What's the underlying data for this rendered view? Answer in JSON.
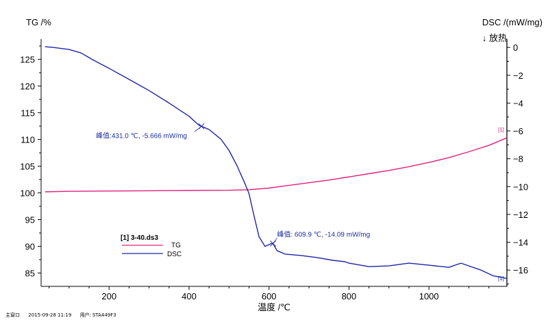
{
  "colors": {
    "tg": "#e0207a",
    "dsc": "#1c23a8",
    "axis": "#000000",
    "annotation": "#1c2ea0"
  },
  "chart_data": {
    "type": "line",
    "title": "",
    "xlabel": "温度 /℃",
    "ylabel_left": "TG /%",
    "ylabel_right": "DSC /(mW/mg)",
    "right_direction_note": "↓ 放热",
    "xlim": [
      30,
      1195
    ],
    "ylim_left": [
      82.5,
      128.8
    ],
    "ylim_right": [
      -17.17,
      0.6
    ],
    "x_ticks": [
      200,
      400,
      600,
      800,
      1000
    ],
    "y_ticks_left": [
      85,
      90,
      95,
      100,
      105,
      110,
      115,
      120,
      125
    ],
    "y_ticks_right": [
      0,
      -2,
      -4,
      -6,
      -8,
      -10,
      -12,
      -14,
      -16
    ],
    "grid": false,
    "legend": {
      "placement": "bottom-left",
      "file": "[1] 3-40.ds3",
      "entries": [
        "TG",
        "DSC"
      ]
    },
    "series": [
      {
        "name": "TG",
        "axis": "left",
        "x": [
          40,
          100,
          200,
          300,
          400,
          500,
          550,
          600,
          650,
          700,
          750,
          800,
          850,
          900,
          950,
          1000,
          1050,
          1100,
          1150,
          1195
        ],
        "y": [
          100.2,
          100.3,
          100.35,
          100.4,
          100.45,
          100.5,
          100.6,
          100.9,
          101.4,
          101.9,
          102.4,
          103.0,
          103.6,
          104.2,
          104.9,
          105.7,
          106.6,
          107.7,
          108.9,
          110.3
        ]
      },
      {
        "name": "DSC",
        "axis": "right",
        "x": [
          40,
          60,
          100,
          130,
          160,
          200,
          250,
          300,
          350,
          400,
          425,
          431,
          450,
          480,
          500,
          520,
          540,
          550,
          560,
          575,
          590,
          605,
          609.9,
          620,
          640,
          680,
          720,
          760,
          790,
          800,
          850,
          900,
          950,
          1000,
          1050,
          1080,
          1100,
          1130,
          1160,
          1195
        ],
        "y": [
          0.05,
          0.0,
          -0.15,
          -0.4,
          -0.9,
          -1.5,
          -2.3,
          -3.1,
          -4.0,
          -4.95,
          -5.6,
          -5.666,
          -5.9,
          -6.6,
          -7.4,
          -8.5,
          -9.8,
          -10.5,
          -11.8,
          -13.6,
          -14.3,
          -14.1,
          -14.09,
          -14.6,
          -14.85,
          -14.95,
          -15.1,
          -15.3,
          -15.4,
          -15.5,
          -15.75,
          -15.7,
          -15.5,
          -15.65,
          -15.8,
          -15.5,
          -15.7,
          -16.0,
          -16.4,
          -16.6
        ]
      }
    ],
    "annotations": [
      {
        "text": "峰值:431.0 ℃, -5.666 mW/mg",
        "x": 431.0,
        "y": -5.666,
        "axis": "right"
      },
      {
        "text": "峰值: 609.9 ℃, -14.09 mW/mg",
        "x": 609.9,
        "y": -14.09,
        "axis": "right"
      }
    ],
    "curve_end_tags": [
      "[1]",
      "[1]"
    ]
  },
  "footer": {
    "app": "主窗口",
    "datetime": "2015-09-28 11:19",
    "user_label": "用户:",
    "instrument": "STA449F3"
  }
}
